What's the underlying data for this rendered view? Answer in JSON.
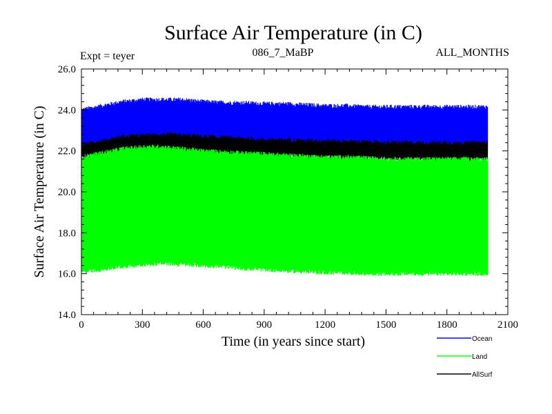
{
  "chart_data": {
    "type": "area",
    "title": "Surface Air Temperature (in C)",
    "subtitle_left": "Expt = teyer",
    "subtitle_center": "086_7_MaBP",
    "subtitle_right": "ALL_MONTHS",
    "xlabel": "Time (in years since start)",
    "ylabel": "Surface Air Temperature (in C)",
    "xlim": [
      0,
      2100
    ],
    "ylim": [
      14.0,
      26.0
    ],
    "x_ticks": [
      0,
      300,
      600,
      900,
      1200,
      1500,
      1800,
      2100
    ],
    "x_tick_labels": [
      "0",
      "300",
      "600",
      "900",
      "1200",
      "1500",
      "1800",
      "2100"
    ],
    "y_ticks": [
      14,
      16,
      18,
      20,
      22,
      24,
      26
    ],
    "y_tick_labels": [
      "14.0",
      "16.0",
      "18.0",
      "20.0",
      "22.0",
      "24.0",
      "26.0"
    ],
    "legend_position": "bottom-right, outside plot",
    "series": [
      {
        "name": "Ocean",
        "color": "#0000ff",
        "x": [
          0,
          100,
          200,
          300,
          400,
          500,
          600,
          700,
          800,
          900,
          1000,
          1100,
          1200,
          1300,
          1400,
          1500,
          1600,
          1700,
          1800,
          1900,
          2000
        ],
        "upper": [
          24.0,
          24.2,
          24.4,
          24.5,
          24.5,
          24.5,
          24.4,
          24.35,
          24.35,
          24.3,
          24.3,
          24.25,
          24.2,
          24.2,
          24.15,
          24.15,
          24.15,
          24.15,
          24.15,
          24.15,
          24.15
        ],
        "lower": [
          22.0,
          22.1,
          22.3,
          22.4,
          22.4,
          22.4,
          22.35,
          22.3,
          22.3,
          22.25,
          22.25,
          22.2,
          22.2,
          22.15,
          22.15,
          22.15,
          22.1,
          22.1,
          22.1,
          22.1,
          22.1
        ]
      },
      {
        "name": "AllSurf",
        "color": "#000000",
        "x": [
          0,
          100,
          200,
          300,
          400,
          500,
          600,
          700,
          800,
          900,
          1000,
          1100,
          1200,
          1300,
          1400,
          1500,
          1600,
          1700,
          1800,
          1900,
          2000
        ],
        "upper": [
          22.3,
          22.5,
          22.7,
          22.75,
          22.8,
          22.75,
          22.7,
          22.65,
          22.6,
          22.55,
          22.55,
          22.5,
          22.5,
          22.45,
          22.45,
          22.4,
          22.4,
          22.4,
          22.4,
          22.4,
          22.4
        ],
        "lower": [
          21.7,
          21.8,
          21.9,
          22.0,
          22.0,
          21.95,
          21.9,
          21.85,
          21.8,
          21.75,
          21.75,
          21.7,
          21.7,
          21.65,
          21.65,
          21.6,
          21.6,
          21.6,
          21.6,
          21.6,
          21.6
        ]
      },
      {
        "name": "Land",
        "color": "#00ff00",
        "x": [
          0,
          100,
          200,
          300,
          400,
          500,
          600,
          700,
          800,
          900,
          1000,
          1100,
          1200,
          1300,
          1400,
          1500,
          1600,
          1700,
          1800,
          1900,
          2000
        ],
        "upper": [
          21.7,
          21.9,
          22.1,
          22.2,
          22.2,
          22.1,
          22.0,
          21.95,
          21.9,
          21.85,
          21.8,
          21.75,
          21.7,
          21.7,
          21.65,
          21.6,
          21.6,
          21.6,
          21.6,
          21.6,
          21.6
        ],
        "lower": [
          16.1,
          16.2,
          16.35,
          16.45,
          16.5,
          16.45,
          16.4,
          16.35,
          16.25,
          16.2,
          16.15,
          16.1,
          16.05,
          16.05,
          16.0,
          16.0,
          16.0,
          16.0,
          16.0,
          16.0,
          16.0
        ]
      }
    ]
  }
}
